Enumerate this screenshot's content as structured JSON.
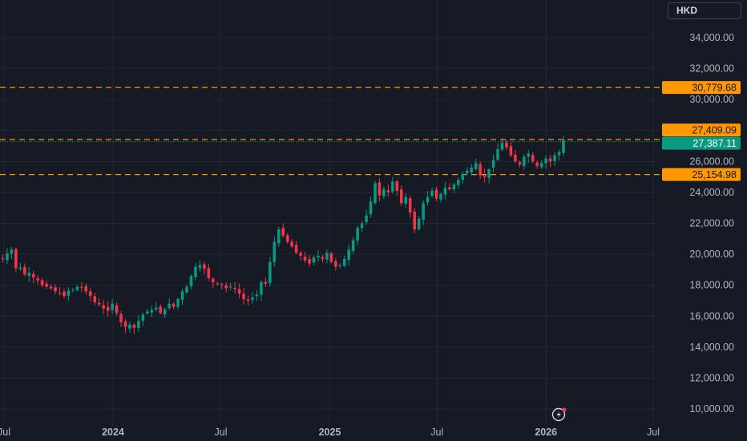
{
  "currency": "HKD",
  "chart_data": {
    "type": "candlestick",
    "y_ticks": [
      "34,000.00",
      "32,000.00",
      "30,000.00",
      "28,000.00",
      "26,000.00",
      "24,000.00",
      "22,000.00",
      "20,000.00",
      "18,000.00",
      "16,000.00",
      "14,000.00",
      "12,000.00",
      "10,000.00"
    ],
    "y_tick_values": [
      34000,
      32000,
      30000,
      28000,
      26000,
      24000,
      22000,
      20000,
      18000,
      16000,
      14000,
      12000,
      10000
    ],
    "x_ticks": [
      "Jul",
      "2024",
      "Jul",
      "2025",
      "Jul",
      "2026",
      "Jul"
    ],
    "x_tick_dates": [
      "2023-07-01",
      "2024-01-01",
      "2024-07-01",
      "2025-01-01",
      "2025-07-01",
      "2026-01-01",
      "2026-07-01"
    ],
    "x_tick_bold": [
      false,
      true,
      false,
      true,
      false,
      true,
      false
    ],
    "ylim": [
      9800,
      35000
    ],
    "horizontal_levels": [
      {
        "value": 30779.68,
        "label": "30,779.68",
        "color": "#ff9800"
      },
      {
        "value": 27409.09,
        "label": "27,409.09",
        "color": "#ff9800"
      },
      {
        "value": 25154.98,
        "label": "25,154.98",
        "color": "#ff9800"
      }
    ],
    "last_price": {
      "value": 27387.11,
      "label": "27,387.11",
      "color": "#089981"
    },
    "up_color": "#089981",
    "down_color": "#f23645",
    "weekly_closes_from_2023-07": [
      19800,
      19700,
      20050,
      20300,
      19100,
      19150,
      18700,
      18800,
      18500,
      18300,
      18000,
      17900,
      17800,
      17600,
      17500,
      17300,
      17650,
      17700,
      17900,
      17850,
      17600,
      17300,
      16900,
      16750,
      16500,
      16350,
      16800,
      16200,
      15600,
      15300,
      15450,
      15250,
      15700,
      16100,
      16300,
      16400,
      16550,
      16200,
      16450,
      16800,
      16600,
      17100,
      17600,
      17900,
      18600,
      19200,
      19300,
      19050,
      18450,
      18200,
      18100,
      18000,
      17800,
      17900,
      17750,
      17450,
      17100,
      17000,
      17200,
      17400,
      18200,
      18100,
      19500,
      20800,
      21600,
      21200,
      20800,
      20500,
      20100,
      19900,
      19600,
      19400,
      19800,
      19900,
      19700,
      20100,
      19500,
      19200,
      19300,
      19700,
      20300,
      20900,
      21700,
      22000,
      22500,
      23400,
      24600,
      23800,
      24200,
      24000,
      24700,
      24100,
      23300,
      23700,
      22700,
      21600,
      22300,
      23300,
      23700,
      24100,
      23600,
      23900,
      24300,
      24200,
      24500,
      24800,
      25200,
      25400,
      25600,
      25900,
      25100,
      25000,
      25500,
      26100,
      26800,
      27200,
      26900,
      26400,
      26000,
      25800,
      26300,
      26500,
      26000,
      25700,
      25900,
      26200,
      26000,
      26400,
      26600,
      27400
    ]
  }
}
